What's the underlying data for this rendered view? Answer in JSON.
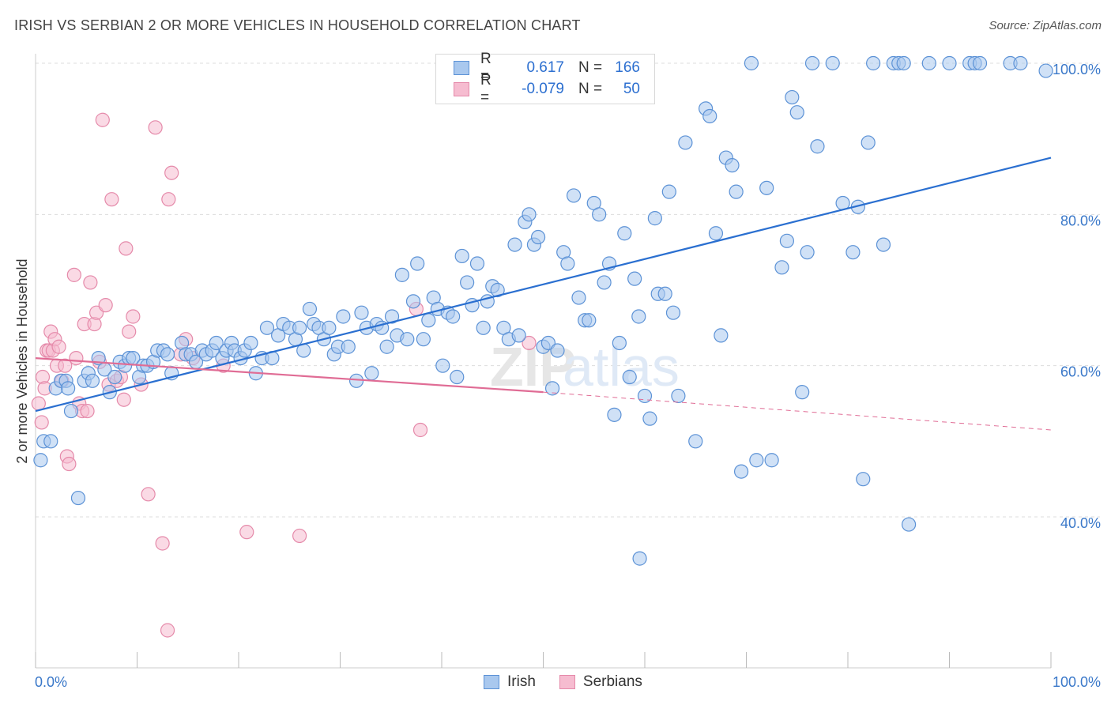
{
  "title": "IRISH VS SERBIAN 2 OR MORE VEHICLES IN HOUSEHOLD CORRELATION CHART",
  "source": "Source: ZipAtlas.com",
  "watermark": "ZIPatlas",
  "colors": {
    "irish_fill": "#a9c8ee",
    "irish_stroke": "#5c92d6",
    "irish_line": "#2a6fd0",
    "serbian_fill": "#f6bcd0",
    "serbian_stroke": "#e58aaa",
    "serbian_line": "#e06c95",
    "axis_text": "#3a78c9",
    "grid": "#dddddd"
  },
  "legend": {
    "rows": [
      {
        "r_label": "R =",
        "r_value": "0.617",
        "n_label": "N =",
        "n_value": "166"
      },
      {
        "r_label": "R =",
        "r_value": "-0.079",
        "n_label": "N =",
        "n_value": "50"
      }
    ]
  },
  "bottom_legend": {
    "irish": "Irish",
    "serbians": "Serbians"
  },
  "chart_data": {
    "type": "scatter",
    "ylabel": "2 or more Vehicles in Household",
    "xlabel": "",
    "x_tick_labels": [
      "0.0%",
      "100.0%"
    ],
    "y_tick_labels": [
      "40.0%",
      "60.0%",
      "80.0%",
      "100.0%"
    ],
    "y_ticks": [
      40,
      60,
      80,
      100
    ],
    "xlim": [
      0,
      100
    ],
    "ylim": [
      20,
      102
    ],
    "grid": true,
    "series": [
      {
        "name": "Irish",
        "trend": {
          "x": [
            0,
            100
          ],
          "y": [
            54.0,
            87.5
          ],
          "style": "solid"
        },
        "points": [
          [
            0.5,
            47.5
          ],
          [
            0.8,
            50.0
          ],
          [
            1.5,
            50.0
          ],
          [
            2,
            57.0
          ],
          [
            2.5,
            58.0
          ],
          [
            3,
            58.0
          ],
          [
            3.2,
            57.0
          ],
          [
            3.5,
            54.0
          ],
          [
            4.2,
            42.5
          ],
          [
            4.8,
            58.0
          ],
          [
            5.2,
            59.0
          ],
          [
            5.6,
            58.0
          ],
          [
            6.2,
            61.0
          ],
          [
            6.8,
            59.5
          ],
          [
            7.3,
            56.5
          ],
          [
            7.8,
            58.5
          ],
          [
            8.3,
            60.5
          ],
          [
            8.8,
            60.0
          ],
          [
            9.2,
            61.0
          ],
          [
            9.6,
            61.0
          ],
          [
            10.2,
            58.5
          ],
          [
            10.6,
            60.0
          ],
          [
            11.0,
            60.0
          ],
          [
            11.6,
            60.5
          ],
          [
            12.0,
            62.0
          ],
          [
            12.6,
            62.0
          ],
          [
            13.0,
            61.5
          ],
          [
            13.4,
            59.0
          ],
          [
            14.4,
            63.0
          ],
          [
            14.8,
            61.5
          ],
          [
            15.3,
            61.5
          ],
          [
            15.8,
            60.5
          ],
          [
            16.4,
            62.0
          ],
          [
            16.8,
            61.5
          ],
          [
            17.4,
            62.0
          ],
          [
            17.8,
            63.0
          ],
          [
            18.4,
            61.0
          ],
          [
            18.8,
            62.0
          ],
          [
            19.3,
            63.0
          ],
          [
            19.6,
            62.0
          ],
          [
            20.2,
            61.0
          ],
          [
            20.6,
            62.0
          ],
          [
            21.2,
            63.0
          ],
          [
            21.7,
            59.0
          ],
          [
            22.3,
            61.0
          ],
          [
            22.8,
            65.0
          ],
          [
            23.3,
            61.0
          ],
          [
            23.9,
            64.0
          ],
          [
            24.4,
            65.5
          ],
          [
            25.0,
            65.0
          ],
          [
            25.6,
            63.5
          ],
          [
            26.0,
            65.0
          ],
          [
            26.4,
            62.0
          ],
          [
            27.0,
            67.5
          ],
          [
            27.4,
            65.5
          ],
          [
            27.9,
            65.0
          ],
          [
            28.4,
            63.5
          ],
          [
            28.9,
            65.0
          ],
          [
            29.4,
            61.5
          ],
          [
            29.8,
            62.5
          ],
          [
            30.3,
            66.5
          ],
          [
            30.8,
            62.5
          ],
          [
            31.6,
            58.0
          ],
          [
            32.1,
            67.0
          ],
          [
            32.6,
            65.0
          ],
          [
            33.1,
            59.0
          ],
          [
            33.6,
            65.5
          ],
          [
            34.1,
            65.0
          ],
          [
            34.6,
            62.5
          ],
          [
            35.1,
            66.5
          ],
          [
            35.6,
            64.0
          ],
          [
            36.1,
            72.0
          ],
          [
            36.6,
            63.5
          ],
          [
            37.2,
            68.5
          ],
          [
            37.6,
            73.5
          ],
          [
            38.2,
            63.5
          ],
          [
            38.7,
            66.0
          ],
          [
            39.2,
            69.0
          ],
          [
            39.6,
            67.5
          ],
          [
            40.1,
            60.0
          ],
          [
            40.6,
            67.0
          ],
          [
            41.1,
            66.5
          ],
          [
            41.5,
            58.5
          ],
          [
            42.0,
            74.5
          ],
          [
            42.5,
            71.0
          ],
          [
            43.0,
            68.0
          ],
          [
            43.5,
            73.5
          ],
          [
            44.1,
            65.0
          ],
          [
            44.5,
            68.5
          ],
          [
            45.0,
            70.5
          ],
          [
            45.5,
            70.0
          ],
          [
            46.1,
            65.0
          ],
          [
            46.6,
            63.5
          ],
          [
            47.2,
            76.0
          ],
          [
            47.6,
            64.0
          ],
          [
            48.2,
            79.0
          ],
          [
            48.6,
            80.0
          ],
          [
            49.1,
            76.0
          ],
          [
            49.5,
            77.0
          ],
          [
            50.0,
            62.5
          ],
          [
            50.5,
            63.0
          ],
          [
            50.9,
            57.0
          ],
          [
            51.4,
            62.0
          ],
          [
            52.0,
            75.0
          ],
          [
            52.4,
            73.5
          ],
          [
            53.0,
            82.5
          ],
          [
            53.5,
            69.0
          ],
          [
            54.1,
            66.0
          ],
          [
            54.5,
            66.0
          ],
          [
            55.0,
            81.5
          ],
          [
            55.5,
            80.0
          ],
          [
            56.0,
            71.0
          ],
          [
            56.5,
            73.5
          ],
          [
            57.0,
            53.5
          ],
          [
            57.5,
            63.0
          ],
          [
            58.0,
            77.5
          ],
          [
            58.5,
            58.5
          ],
          [
            59.0,
            71.5
          ],
          [
            59.4,
            66.5
          ],
          [
            60.0,
            56.0
          ],
          [
            60.5,
            53.0
          ],
          [
            61.0,
            79.5
          ],
          [
            61.3,
            69.5
          ],
          [
            62.0,
            69.5
          ],
          [
            62.4,
            83.0
          ],
          [
            62.8,
            67.0
          ],
          [
            63.3,
            56.0
          ],
          [
            64.0,
            89.5
          ],
          [
            65.0,
            50.0
          ],
          [
            66.0,
            94.0
          ],
          [
            66.4,
            93.0
          ],
          [
            67.0,
            77.5
          ],
          [
            67.5,
            64.0
          ],
          [
            68.0,
            87.5
          ],
          [
            68.6,
            86.5
          ],
          [
            69.0,
            83.0
          ],
          [
            69.5,
            46.0
          ],
          [
            70.5,
            100.0
          ],
          [
            71.0,
            47.5
          ],
          [
            72.0,
            83.5
          ],
          [
            72.5,
            47.5
          ],
          [
            73.5,
            73.0
          ],
          [
            74.0,
            76.5
          ],
          [
            74.5,
            95.5
          ],
          [
            75.0,
            93.5
          ],
          [
            75.5,
            56.5
          ],
          [
            76.0,
            75.0
          ],
          [
            76.5,
            100.0
          ],
          [
            77.0,
            89.0
          ],
          [
            78.5,
            100.0
          ],
          [
            79.5,
            81.5
          ],
          [
            80.5,
            75.0
          ],
          [
            81.0,
            81.0
          ],
          [
            81.5,
            45.0
          ],
          [
            82.0,
            89.5
          ],
          [
            82.5,
            100.0
          ],
          [
            83.5,
            76.0
          ],
          [
            84.5,
            100.0
          ],
          [
            85.0,
            100.0
          ],
          [
            85.5,
            100.0
          ],
          [
            86.0,
            39.0
          ],
          [
            88.0,
            100.0
          ],
          [
            90.0,
            100.0
          ],
          [
            92.0,
            100.0
          ],
          [
            92.5,
            100.0
          ],
          [
            93.0,
            100.0
          ],
          [
            96.0,
            100.0
          ],
          [
            97.0,
            100.0
          ],
          [
            99.5,
            99.0
          ],
          [
            59.5,
            34.5
          ]
        ]
      },
      {
        "name": "Serbians",
        "trend_solid": {
          "x": [
            0,
            50
          ],
          "y": [
            61.0,
            56.5
          ]
        },
        "trend_dashed": {
          "x": [
            50,
            100
          ],
          "y": [
            56.5,
            51.5
          ]
        },
        "points": [
          [
            0.3,
            55.0
          ],
          [
            0.6,
            52.5
          ],
          [
            0.7,
            58.5
          ],
          [
            0.9,
            57.0
          ],
          [
            1.1,
            62.0
          ],
          [
            1.3,
            62.0
          ],
          [
            1.5,
            64.5
          ],
          [
            1.7,
            62.0
          ],
          [
            1.9,
            63.5
          ],
          [
            2.1,
            60.0
          ],
          [
            2.3,
            62.5
          ],
          [
            2.6,
            58.0
          ],
          [
            2.9,
            60.0
          ],
          [
            3.1,
            48.0
          ],
          [
            3.3,
            47.0
          ],
          [
            3.8,
            72.0
          ],
          [
            4.0,
            61.0
          ],
          [
            4.3,
            55.0
          ],
          [
            4.6,
            54.0
          ],
          [
            4.8,
            65.5
          ],
          [
            5.1,
            54.0
          ],
          [
            5.4,
            71.0
          ],
          [
            5.8,
            65.5
          ],
          [
            6.0,
            67.0
          ],
          [
            6.3,
            60.5
          ],
          [
            6.6,
            92.5
          ],
          [
            6.9,
            68.0
          ],
          [
            7.2,
            57.5
          ],
          [
            7.5,
            82.0
          ],
          [
            8.0,
            58.0
          ],
          [
            8.4,
            58.5
          ],
          [
            8.7,
            55.5
          ],
          [
            8.9,
            75.5
          ],
          [
            9.2,
            64.5
          ],
          [
            9.6,
            66.5
          ],
          [
            10.4,
            57.5
          ],
          [
            11.1,
            43.0
          ],
          [
            11.8,
            91.5
          ],
          [
            12.5,
            36.5
          ],
          [
            13.0,
            25.0
          ],
          [
            13.1,
            82.0
          ],
          [
            13.4,
            85.5
          ],
          [
            14.3,
            61.5
          ],
          [
            14.8,
            63.5
          ],
          [
            15.5,
            61.0
          ],
          [
            18.5,
            60.0
          ],
          [
            20.8,
            38.0
          ],
          [
            26.0,
            37.5
          ],
          [
            37.5,
            67.5
          ],
          [
            37.9,
            51.5
          ],
          [
            48.6,
            63.0
          ]
        ]
      }
    ]
  }
}
